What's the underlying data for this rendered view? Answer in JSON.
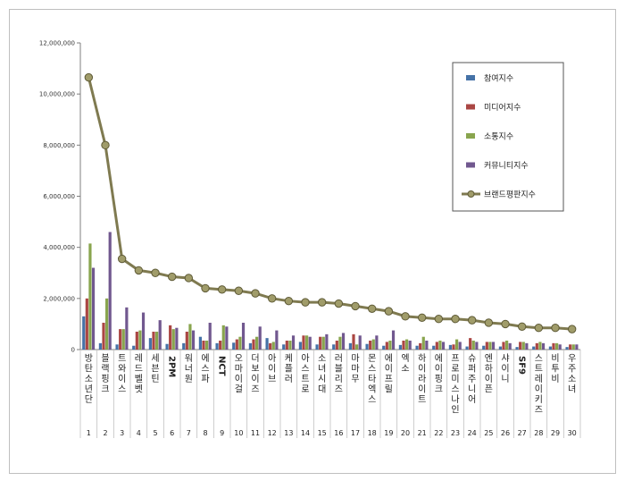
{
  "chart_data": {
    "type": "bar",
    "title": "",
    "xlabel": "",
    "ylabel": "",
    "ylim": [
      0,
      12000000
    ],
    "yticks": [
      "0",
      "2,000,000",
      "4,000,000",
      "6,000,000",
      "8,000,000",
      "10,000,000",
      "12,000,000"
    ],
    "ytick_values": [
      0,
      2000000,
      4000000,
      6000000,
      8000000,
      10000000,
      12000000
    ],
    "grid": false,
    "legend_position": "top-right",
    "categories": [
      "방탄소년단",
      "블랙핑크",
      "트와이스",
      "레드벨벳",
      "세븐틴",
      "2PM",
      "워너원",
      "에스파",
      "NCT",
      "오마이걸",
      "더보이즈",
      "아이브",
      "케플러",
      "아스트로",
      "소녀시대",
      "러블리즈",
      "마마무",
      "몬스타엑스",
      "에이프릴",
      "엑소",
      "하이라이트",
      "에이핑크",
      "프로미스나인",
      "슈퍼주니어",
      "엔하이픈",
      "샤이니",
      "SF9",
      "스트레이키즈",
      "비투비",
      "우주소녀"
    ],
    "ranks": [
      "1",
      "2",
      "3",
      "4",
      "5",
      "6",
      "7",
      "8",
      "9",
      "10",
      "11",
      "12",
      "13",
      "14",
      "15",
      "16",
      "17",
      "18",
      "19",
      "20",
      "21",
      "22",
      "23",
      "24",
      "25",
      "26",
      "27",
      "28",
      "29",
      "30"
    ],
    "series": [
      {
        "name": "참여지수",
        "color": "#4572a7",
        "values": [
          1300000,
          250000,
          200000,
          150000,
          450000,
          220000,
          250000,
          500000,
          250000,
          270000,
          250000,
          450000,
          200000,
          300000,
          200000,
          200000,
          250000,
          220000,
          150000,
          180000,
          150000,
          150000,
          180000,
          120000,
          150000,
          120000,
          100000,
          120000,
          120000,
          100000
        ]
      },
      {
        "name": "미디어지수",
        "color": "#aa4643",
        "values": [
          2000000,
          1050000,
          800000,
          700000,
          700000,
          950000,
          700000,
          350000,
          350000,
          400000,
          400000,
          250000,
          350000,
          550000,
          500000,
          350000,
          600000,
          350000,
          300000,
          350000,
          250000,
          300000,
          200000,
          450000,
          300000,
          300000,
          300000,
          250000,
          250000,
          200000
        ]
      },
      {
        "name": "소통지수",
        "color": "#89a54e",
        "values": [
          4150000,
          2000000,
          800000,
          750000,
          700000,
          800000,
          1000000,
          350000,
          950000,
          500000,
          500000,
          300000,
          350000,
          550000,
          500000,
          500000,
          200000,
          400000,
          350000,
          400000,
          500000,
          350000,
          400000,
          350000,
          300000,
          350000,
          300000,
          300000,
          250000,
          200000
        ]
      },
      {
        "name": "커뮤니티지수",
        "color": "#71588f",
        "values": [
          3200000,
          4600000,
          1650000,
          1450000,
          1150000,
          850000,
          750000,
          1050000,
          900000,
          1050000,
          900000,
          750000,
          550000,
          500000,
          600000,
          650000,
          550000,
          550000,
          750000,
          350000,
          350000,
          300000,
          300000,
          300000,
          300000,
          250000,
          250000,
          250000,
          200000,
          200000
        ]
      },
      {
        "name": "브랜드평판지수",
        "color": "#7f7a50",
        "values": [
          10650000,
          8000000,
          3550000,
          3100000,
          3000000,
          2850000,
          2800000,
          2400000,
          2350000,
          2300000,
          2200000,
          2000000,
          1900000,
          1850000,
          1850000,
          1800000,
          1700000,
          1600000,
          1500000,
          1300000,
          1250000,
          1200000,
          1200000,
          1150000,
          1050000,
          1000000,
          900000,
          850000,
          850000,
          800000
        ]
      }
    ]
  }
}
